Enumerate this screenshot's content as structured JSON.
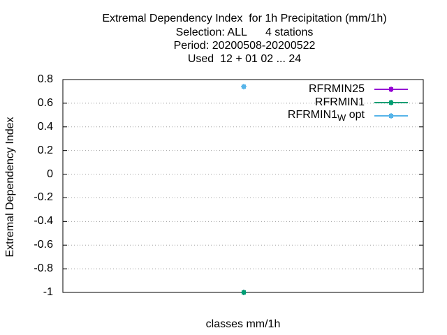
{
  "title_lines": [
    "Extremal Dependency Index  for 1h Precipitation (mm/1h)",
    "Selection: ALL      4 stations",
    "Period: 20200508-20200522",
    "Used  12 + 01 02 ... 24"
  ],
  "chart_data": {
    "type": "scatter",
    "xlabel": "classes mm/1h",
    "ylabel": "Extremal Dependency Index",
    "ylim": [
      -1,
      0.8
    ],
    "yticks": [
      "0.8",
      "0.6",
      "0.4",
      "0.2",
      "0",
      "-0.2",
      "-0.4",
      "-0.6",
      "-0.8",
      "-1"
    ],
    "grid": true,
    "legend_position": "top-right",
    "series": [
      {
        "name": "RFRMIN25",
        "color": "#9400d3",
        "points": [
          {
            "y": -1.0
          }
        ]
      },
      {
        "name": "RFRMIN1",
        "color": "#009e73",
        "points": [
          {
            "y": -1.0
          }
        ]
      },
      {
        "name_main": "RFRMIN1",
        "name_sub": "W",
        "name_tail": " opt",
        "color": "#56b4e9",
        "points": [
          {
            "y": 0.74
          }
        ]
      }
    ]
  }
}
